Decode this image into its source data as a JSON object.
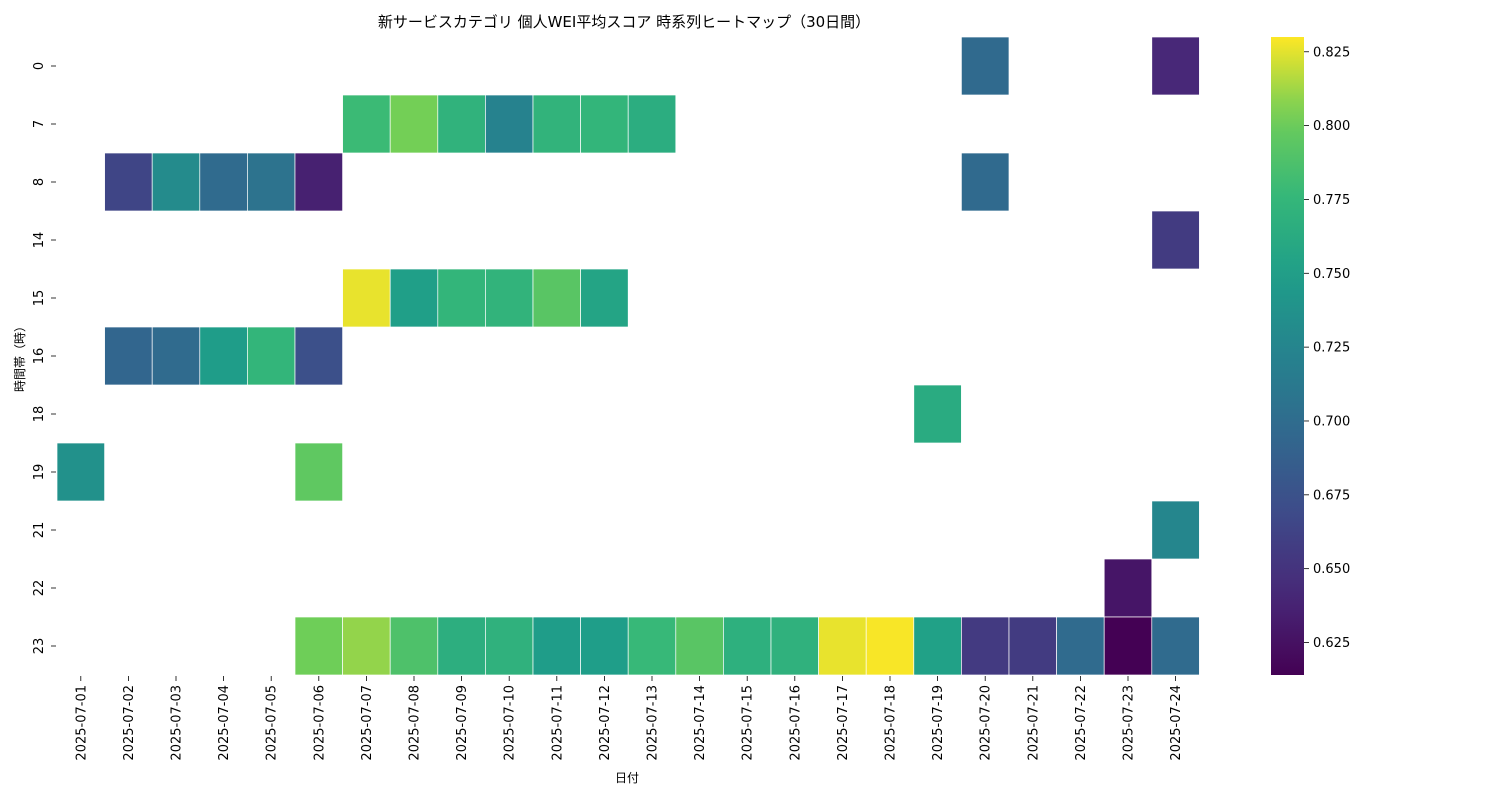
{
  "chart_data": {
    "type": "heatmap",
    "title": "新サービスカテゴリ 個人WEI平均スコア 時系列ヒートマップ（30日間）",
    "xlabel": "日付",
    "ylabel": "時間帯（時）",
    "x_categories": [
      "2025-07-01",
      "2025-07-02",
      "2025-07-03",
      "2025-07-04",
      "2025-07-05",
      "2025-07-06",
      "2025-07-07",
      "2025-07-08",
      "2025-07-09",
      "2025-07-10",
      "2025-07-11",
      "2025-07-12",
      "2025-07-13",
      "2025-07-14",
      "2025-07-15",
      "2025-07-16",
      "2025-07-17",
      "2025-07-18",
      "2025-07-19",
      "2025-07-20",
      "2025-07-21",
      "2025-07-22",
      "2025-07-23",
      "2025-07-24"
    ],
    "y_categories": [
      "0",
      "7",
      "8",
      "14",
      "15",
      "16",
      "18",
      "19",
      "21",
      "22",
      "23"
    ],
    "colormap": "viridis",
    "colorbar_range": [
      0.614,
      0.83
    ],
    "colorbar_ticks": [
      0.625,
      0.65,
      0.675,
      0.7,
      0.725,
      0.75,
      0.775,
      0.8,
      0.825
    ],
    "colorbar_tick_labels": [
      "0.625",
      "0.650",
      "0.675",
      "0.700",
      "0.725",
      "0.750",
      "0.775",
      "0.800",
      "0.825"
    ],
    "cells": [
      {
        "x": "2025-07-20",
        "y": "0",
        "value": 0.697
      },
      {
        "x": "2025-07-24",
        "y": "0",
        "value": 0.641
      },
      {
        "x": "2025-07-07",
        "y": "7",
        "value": 0.779
      },
      {
        "x": "2025-07-08",
        "y": "7",
        "value": 0.804
      },
      {
        "x": "2025-07-09",
        "y": "7",
        "value": 0.771
      },
      {
        "x": "2025-07-10",
        "y": "7",
        "value": 0.722
      },
      {
        "x": "2025-07-11",
        "y": "7",
        "value": 0.772
      },
      {
        "x": "2025-07-12",
        "y": "7",
        "value": 0.774
      },
      {
        "x": "2025-07-13",
        "y": "7",
        "value": 0.765
      },
      {
        "x": "2025-07-02",
        "y": "8",
        "value": 0.664
      },
      {
        "x": "2025-07-03",
        "y": "8",
        "value": 0.731
      },
      {
        "x": "2025-07-04",
        "y": "8",
        "value": 0.698
      },
      {
        "x": "2025-07-05",
        "y": "8",
        "value": 0.706
      },
      {
        "x": "2025-07-06",
        "y": "8",
        "value": 0.636
      },
      {
        "x": "2025-07-20",
        "y": "8",
        "value": 0.697
      },
      {
        "x": "2025-07-24",
        "y": "14",
        "value": 0.656
      },
      {
        "x": "2025-07-07",
        "y": "15",
        "value": 0.826
      },
      {
        "x": "2025-07-08",
        "y": "15",
        "value": 0.75
      },
      {
        "x": "2025-07-09",
        "y": "15",
        "value": 0.774
      },
      {
        "x": "2025-07-10",
        "y": "15",
        "value": 0.772
      },
      {
        "x": "2025-07-11",
        "y": "15",
        "value": 0.793
      },
      {
        "x": "2025-07-12",
        "y": "15",
        "value": 0.755
      },
      {
        "x": "2025-07-02",
        "y": "16",
        "value": 0.693
      },
      {
        "x": "2025-07-03",
        "y": "16",
        "value": 0.698
      },
      {
        "x": "2025-07-04",
        "y": "16",
        "value": 0.748
      },
      {
        "x": "2025-07-05",
        "y": "16",
        "value": 0.774
      },
      {
        "x": "2025-07-06",
        "y": "16",
        "value": 0.673
      },
      {
        "x": "2025-07-19",
        "y": "18",
        "value": 0.763
      },
      {
        "x": "2025-07-01",
        "y": "19",
        "value": 0.736
      },
      {
        "x": "2025-07-06",
        "y": "19",
        "value": 0.796
      },
      {
        "x": "2025-07-24",
        "y": "21",
        "value": 0.726
      },
      {
        "x": "2025-07-23",
        "y": "22",
        "value": 0.628
      },
      {
        "x": "2025-07-06",
        "y": "23",
        "value": 0.803
      },
      {
        "x": "2025-07-07",
        "y": "23",
        "value": 0.81
      },
      {
        "x": "2025-07-08",
        "y": "23",
        "value": 0.788
      },
      {
        "x": "2025-07-09",
        "y": "23",
        "value": 0.766
      },
      {
        "x": "2025-07-10",
        "y": "23",
        "value": 0.77
      },
      {
        "x": "2025-07-11",
        "y": "23",
        "value": 0.748
      },
      {
        "x": "2025-07-12",
        "y": "23",
        "value": 0.749
      },
      {
        "x": "2025-07-13",
        "y": "23",
        "value": 0.777
      },
      {
        "x": "2025-07-14",
        "y": "23",
        "value": 0.793
      },
      {
        "x": "2025-07-15",
        "y": "23",
        "value": 0.768
      },
      {
        "x": "2025-07-16",
        "y": "23",
        "value": 0.77
      },
      {
        "x": "2025-07-17",
        "y": "23",
        "value": 0.826
      },
      {
        "x": "2025-07-18",
        "y": "23",
        "value": 0.829
      },
      {
        "x": "2025-07-19",
        "y": "23",
        "value": 0.752
      },
      {
        "x": "2025-07-20",
        "y": "23",
        "value": 0.655
      },
      {
        "x": "2025-07-21",
        "y": "23",
        "value": 0.656
      },
      {
        "x": "2025-07-22",
        "y": "23",
        "value": 0.698
      },
      {
        "x": "2025-07-23",
        "y": "23",
        "value": 0.614
      },
      {
        "x": "2025-07-24",
        "y": "23",
        "value": 0.698
      }
    ]
  }
}
